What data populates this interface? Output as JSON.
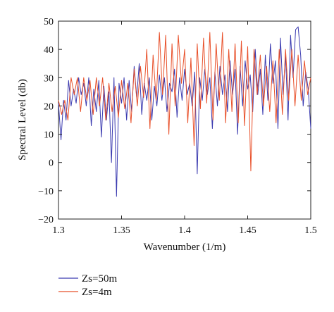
{
  "chart_data": {
    "type": "line",
    "title": "",
    "xlabel": "Wavenumber (1/m)",
    "ylabel": "Spectral Level (db)",
    "xlim": [
      1.3,
      1.5
    ],
    "ylim": [
      -20,
      50
    ],
    "xticks": [
      "1.3",
      "1.35",
      "1.4",
      "1.45",
      "1.5"
    ],
    "yticks": [
      "50",
      "40",
      "30",
      "20",
      "10",
      "0",
      "−10",
      "−20"
    ],
    "xtick_values": [
      1.3,
      1.35,
      1.4,
      1.45,
      1.5
    ],
    "ytick_values": [
      50,
      40,
      30,
      20,
      10,
      0,
      -10,
      -20
    ],
    "grid": false,
    "legend_position": "bottom-left outside",
    "series": [
      {
        "name": "Zs=50m",
        "color": "#3b3bb0",
        "x": [
          1.3,
          1.302,
          1.304,
          1.306,
          1.308,
          1.31,
          1.312,
          1.314,
          1.316,
          1.318,
          1.32,
          1.322,
          1.324,
          1.326,
          1.328,
          1.33,
          1.332,
          1.334,
          1.336,
          1.338,
          1.34,
          1.342,
          1.344,
          1.346,
          1.348,
          1.35,
          1.352,
          1.354,
          1.356,
          1.358,
          1.36,
          1.362,
          1.364,
          1.366,
          1.368,
          1.37,
          1.372,
          1.374,
          1.376,
          1.378,
          1.38,
          1.382,
          1.384,
          1.386,
          1.388,
          1.39,
          1.392,
          1.394,
          1.396,
          1.398,
          1.4,
          1.402,
          1.404,
          1.406,
          1.408,
          1.41,
          1.412,
          1.414,
          1.416,
          1.418,
          1.42,
          1.422,
          1.424,
          1.426,
          1.428,
          1.43,
          1.432,
          1.434,
          1.436,
          1.438,
          1.44,
          1.442,
          1.444,
          1.446,
          1.448,
          1.45,
          1.452,
          1.454,
          1.456,
          1.458,
          1.46,
          1.462,
          1.464,
          1.466,
          1.468,
          1.47,
          1.472,
          1.474,
          1.476,
          1.478,
          1.48,
          1.482,
          1.484,
          1.486,
          1.488,
          1.49,
          1.492,
          1.494,
          1.496,
          1.498,
          1.5
        ],
        "values": [
          21,
          8,
          22,
          15,
          29,
          20,
          26,
          21,
          30,
          24,
          28,
          20,
          30,
          13,
          26,
          18,
          29,
          9,
          27,
          15,
          25,
          0,
          30,
          -12,
          28,
          21,
          30,
          15,
          29,
          18,
          34,
          23,
          35,
          17,
          28,
          22,
          30,
          15,
          27,
          20,
          31,
          22,
          30,
          18,
          28,
          25,
          33,
          16,
          30,
          22,
          33,
          24,
          28,
          20,
          32,
          -4,
          30,
          22,
          33,
          24,
          30,
          12,
          32,
          20,
          34,
          24,
          31,
          18,
          36,
          24,
          33,
          10,
          34,
          20,
          36,
          26,
          31,
          18,
          40,
          24,
          33,
          17,
          38,
          22,
          42,
          28,
          36,
          12,
          44,
          24,
          38,
          15,
          45,
          30,
          47,
          48,
          38,
          20,
          32,
          26,
          12
        ]
      },
      {
        "name": "Zs=4m",
        "color": "#e8502a",
        "x": [
          1.3,
          1.3025,
          1.305,
          1.3075,
          1.31,
          1.3125,
          1.315,
          1.3175,
          1.32,
          1.3225,
          1.325,
          1.3275,
          1.33,
          1.3325,
          1.335,
          1.3375,
          1.34,
          1.3425,
          1.345,
          1.3475,
          1.35,
          1.3525,
          1.355,
          1.3575,
          1.36,
          1.3625,
          1.365,
          1.3675,
          1.37,
          1.3725,
          1.375,
          1.3775,
          1.38,
          1.3825,
          1.385,
          1.3875,
          1.39,
          1.3925,
          1.395,
          1.3975,
          1.4,
          1.4025,
          1.405,
          1.4075,
          1.41,
          1.4125,
          1.415,
          1.4175,
          1.42,
          1.4225,
          1.425,
          1.4275,
          1.43,
          1.4325,
          1.435,
          1.4375,
          1.44,
          1.4425,
          1.445,
          1.4475,
          1.45,
          1.4525,
          1.455,
          1.4575,
          1.46,
          1.4625,
          1.465,
          1.4675,
          1.47,
          1.4725,
          1.475,
          1.4775,
          1.48,
          1.4825,
          1.485,
          1.4875,
          1.49,
          1.4925,
          1.495,
          1.4975,
          1.5
        ],
        "values": [
          22,
          17,
          22,
          15,
          30,
          24,
          30,
          18,
          30,
          22,
          29,
          17,
          30,
          20,
          30,
          15,
          28,
          18,
          27,
          16,
          29,
          19,
          28,
          14,
          33,
          20,
          34,
          23,
          40,
          12,
          38,
          22,
          46,
          24,
          45,
          10,
          42,
          20,
          45,
          28,
          40,
          14,
          37,
          6,
          42,
          19,
          44,
          21,
          46,
          15,
          42,
          22,
          46,
          14,
          40,
          18,
          42,
          14,
          43,
          13,
          41,
          -3,
          40,
          24,
          38,
          20,
          34,
          18,
          36,
          14,
          40,
          17,
          40,
          22,
          40,
          20,
          38,
          22,
          36,
          24,
          30
        ]
      }
    ]
  }
}
